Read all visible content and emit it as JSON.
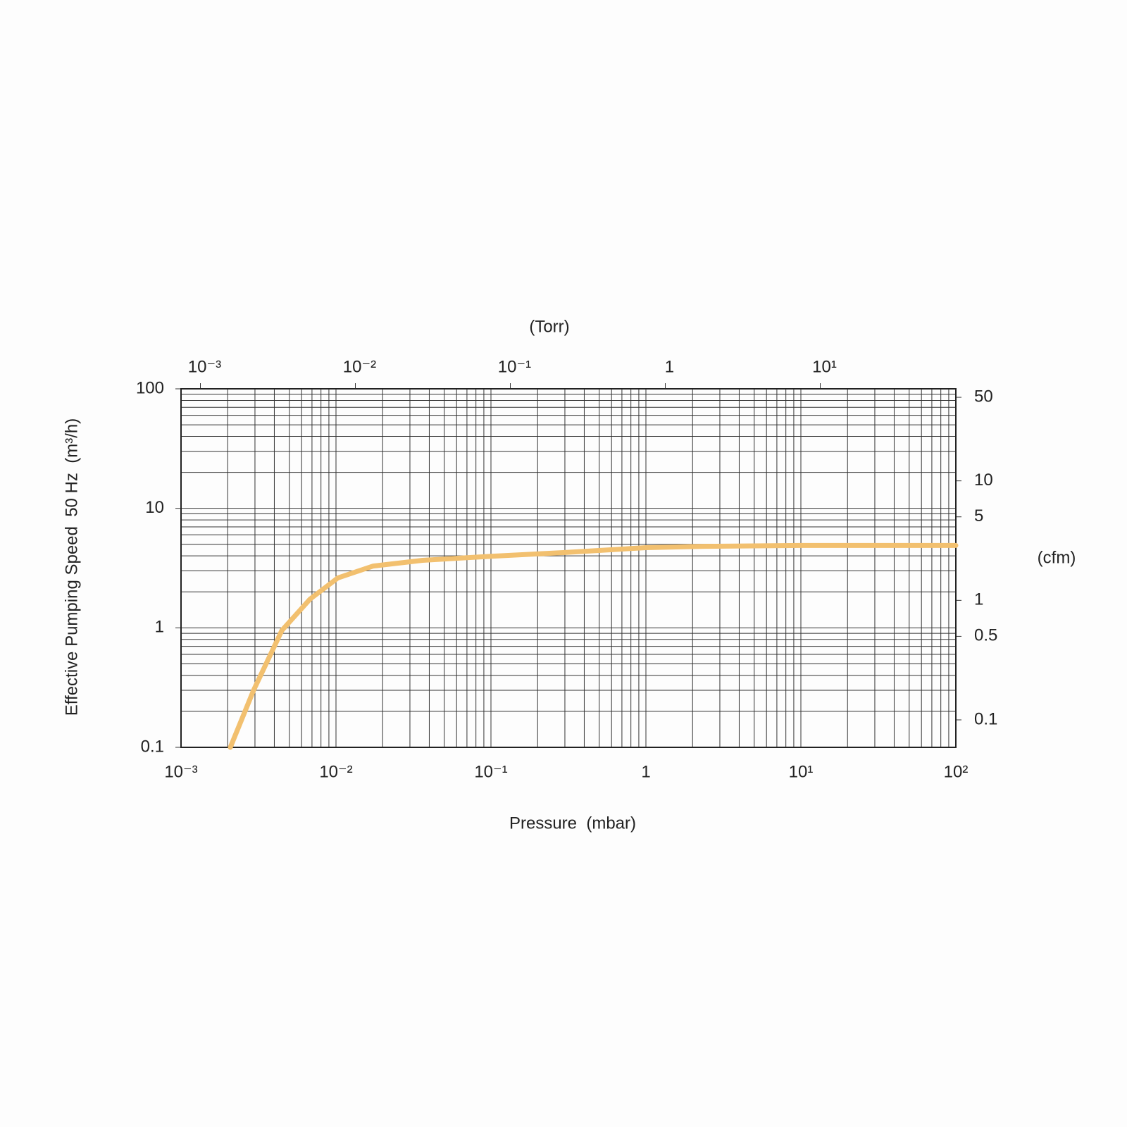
{
  "chart_data": {
    "type": "line",
    "title": "(Torr)",
    "x_label": "Pressure  (mbar)",
    "y_label": "Effective Pumping Speed  50 Hz  (m³/h)",
    "y2_label": "(cfm)",
    "x_log": true,
    "y_log": true,
    "grid": true,
    "minor_grid": true,
    "x": [
      0.00208,
      0.00294,
      0.00447,
      0.0068,
      0.0103,
      0.0174,
      0.0362,
      0.103,
      0.294,
      1,
      2.38,
      10,
      100
    ],
    "series": [
      {
        "color": "#f2c06f",
        "values": [
          0.1,
          0.3,
          0.95,
          1.74,
          2.62,
          3.29,
          3.67,
          3.98,
          4.26,
          4.69,
          4.81,
          4.89,
          4.89
        ]
      }
    ],
    "xlim": [
      0.001,
      100
    ],
    "xticks": [
      {
        "value": 0.001,
        "label": "10⁻³"
      },
      {
        "value": 0.01,
        "label": "10⁻²"
      },
      {
        "value": 0.1,
        "label": "10⁻¹"
      },
      1,
      {
        "value": 10,
        "label": "10¹"
      },
      {
        "value": 100,
        "label": "10²"
      }
    ],
    "ylim": [
      0.1,
      100
    ],
    "yticks": [
      0.1,
      1,
      10,
      100
    ],
    "x2lim": [
      0.00075,
      75
    ],
    "x2ticks": [
      {
        "value": 0.001,
        "label": "10⁻³"
      },
      {
        "value": 0.01,
        "label": "10⁻²"
      },
      {
        "value": 0.1,
        "label": "10⁻¹"
      },
      1,
      {
        "value": 10,
        "label": "10¹"
      }
    ],
    "y2lim": [
      0.0589,
      58.9
    ],
    "y2ticks": [
      0.1,
      0.5,
      1,
      5,
      10,
      50
    ]
  }
}
